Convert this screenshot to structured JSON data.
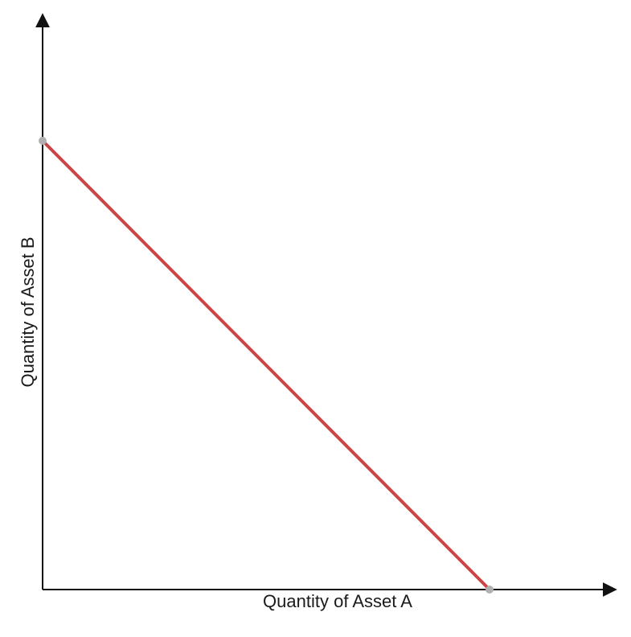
{
  "chart_data": {
    "type": "line",
    "title": "",
    "xlabel": "Quantity of Asset A",
    "ylabel": "Quantity of Asset B",
    "ticks_shown": false,
    "grid": false,
    "legend": "none",
    "xlim": [
      0,
      1.3
    ],
    "ylim": [
      0,
      1.3
    ],
    "series": [
      {
        "color": "#cc4444",
        "endpoint_color": "#b0b0b0",
        "x": [
          0,
          1
        ],
        "y": [
          1,
          0
        ]
      }
    ]
  }
}
